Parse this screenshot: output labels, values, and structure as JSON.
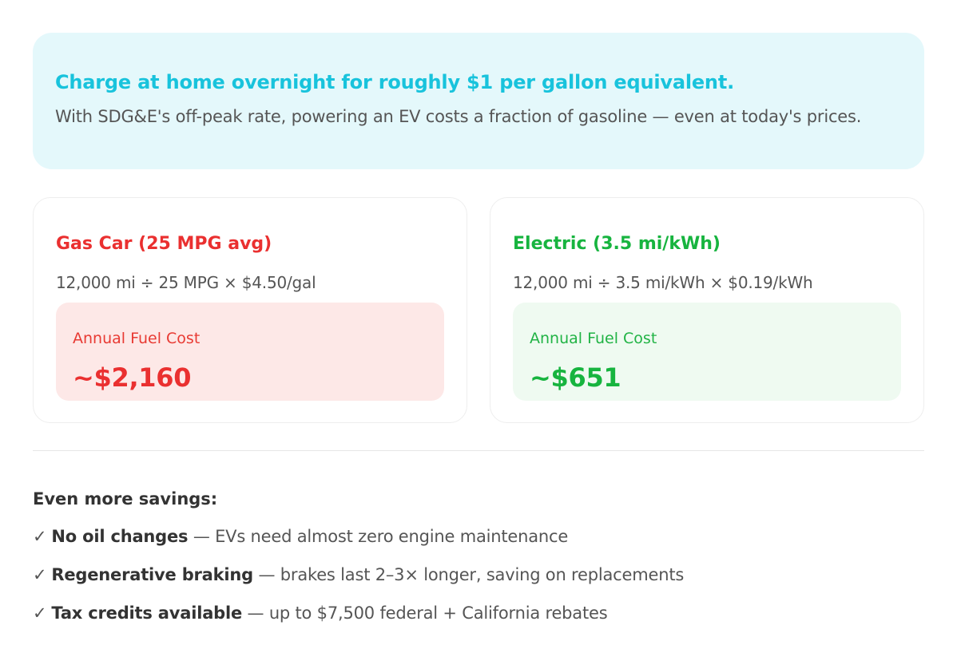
{
  "banner": {
    "title": "Charge at home overnight for roughly $1 per gallon equivalent.",
    "text": "With SDG&E's off-peak rate, powering an EV costs a fraction of gasoline — even at today's prices."
  },
  "gas": {
    "title": "Gas Car (25 MPG avg)",
    "formula": "12,000 mi ÷ 25 MPG × $4.50/gal",
    "cost_label": "Annual Fuel Cost",
    "cost_value": "~$2,160"
  },
  "ev": {
    "title": "Electric (3.5 mi/kWh)",
    "formula": "12,000 mi ÷ 3.5 mi/kWh × $0.19/kWh",
    "cost_label": "Annual Fuel Cost",
    "cost_value": "~$651"
  },
  "savings": {
    "heading": "Even more savings:",
    "check_glyph": "✓",
    "items": [
      {
        "bold": "No oil changes",
        "rest": " — EVs need almost zero engine maintenance"
      },
      {
        "bold": "Regenerative braking",
        "rest": " — brakes last 2–3× longer, saving on replacements"
      },
      {
        "bold": "Tax credits available",
        "rest": " — up to $7,500 federal + California rebates"
      }
    ]
  },
  "colors": {
    "banner_bg": "#e4f8fb",
    "banner_title": "#18c3dc",
    "gas_accent": "#ea3030",
    "gas_box_bg": "#fde8e7",
    "ev_accent": "#17b43f",
    "ev_box_bg": "#effaf1"
  }
}
